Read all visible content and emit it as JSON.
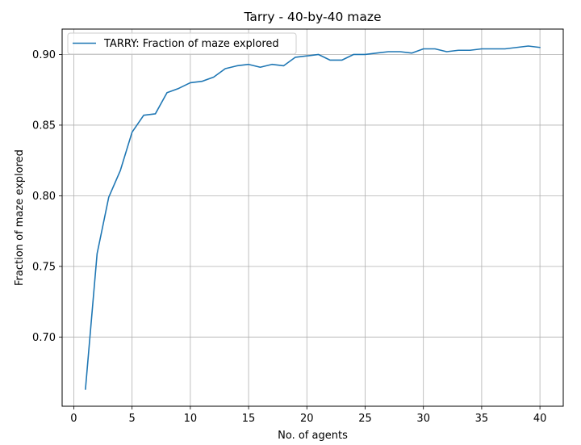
{
  "chart_data": {
    "type": "line",
    "title": "Tarry - 40-by-40 maze",
    "xlabel": "No. of agents",
    "ylabel": "Fraction of maze explored",
    "xlim": [
      -1,
      42
    ],
    "ylim": [
      0.651,
      0.918
    ],
    "xticks": [
      "0",
      "5",
      "10",
      "15",
      "20",
      "25",
      "30",
      "35",
      "40"
    ],
    "yticks": [
      "0.70",
      "0.75",
      "0.80",
      "0.85",
      "0.90"
    ],
    "grid": true,
    "legend_position": "top-left",
    "series": [
      {
        "name": "TARRY: Fraction of maze explored",
        "color": "#1f77b4",
        "x": [
          1,
          2,
          3,
          4,
          5,
          6,
          7,
          8,
          9,
          10,
          11,
          12,
          13,
          14,
          15,
          16,
          17,
          18,
          19,
          20,
          21,
          22,
          23,
          24,
          25,
          26,
          27,
          28,
          29,
          30,
          31,
          32,
          33,
          34,
          35,
          36,
          37,
          38,
          39,
          40
        ],
        "y": [
          0.663,
          0.759,
          0.799,
          0.818,
          0.845,
          0.857,
          0.858,
          0.873,
          0.876,
          0.88,
          0.881,
          0.884,
          0.89,
          0.892,
          0.893,
          0.891,
          0.893,
          0.892,
          0.898,
          0.899,
          0.9,
          0.896,
          0.896,
          0.9,
          0.9,
          0.901,
          0.902,
          0.902,
          0.901,
          0.904,
          0.904,
          0.902,
          0.903,
          0.903,
          0.904,
          0.904,
          0.904,
          0.905,
          0.906,
          0.905
        ]
      }
    ]
  }
}
